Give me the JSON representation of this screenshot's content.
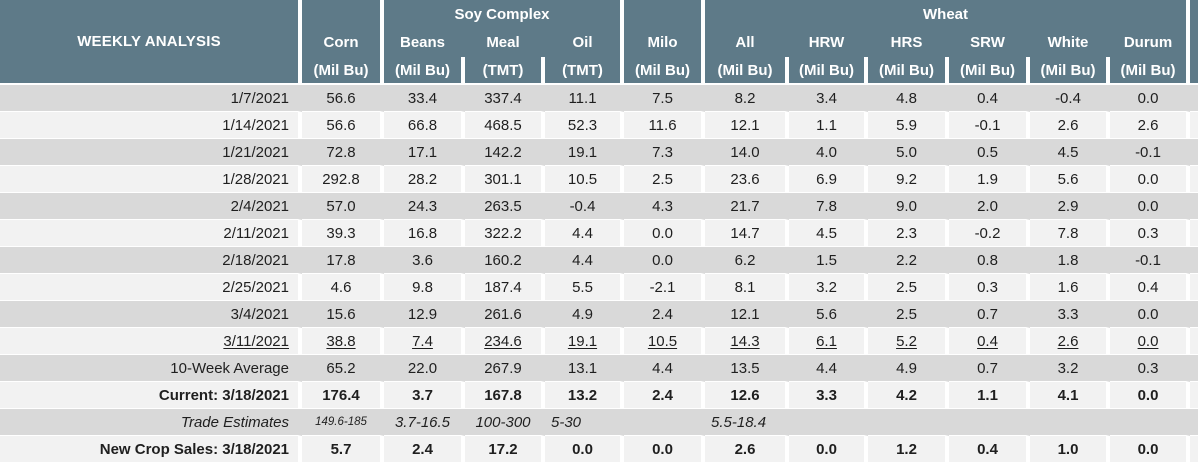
{
  "chart_data": {
    "type": "table",
    "title": "WEEKLY ANALYSIS",
    "groups": [
      {
        "label": "Soy Complex"
      },
      {
        "label": "Wheat"
      }
    ],
    "columns": [
      {
        "name": "Corn",
        "unit": "(Mil Bu)"
      },
      {
        "name": "Beans",
        "unit": "(Mil Bu)",
        "group": "Soy Complex"
      },
      {
        "name": "Meal",
        "unit": "(TMT)",
        "group": "Soy Complex"
      },
      {
        "name": "Oil",
        "unit": "(TMT)",
        "group": "Soy Complex"
      },
      {
        "name": "Milo",
        "unit": "(Mil Bu)"
      },
      {
        "name": "All",
        "unit": "(Mil Bu)",
        "group": "Wheat"
      },
      {
        "name": "HRW",
        "unit": "(Mil Bu)",
        "group": "Wheat"
      },
      {
        "name": "HRS",
        "unit": "(Mil Bu)",
        "group": "Wheat"
      },
      {
        "name": "SRW",
        "unit": "(Mil Bu)",
        "group": "Wheat"
      },
      {
        "name": "White",
        "unit": "(Mil Bu)",
        "group": "Wheat"
      },
      {
        "name": "Durum",
        "unit": "(Mil Bu)",
        "group": "Wheat"
      }
    ],
    "rows": [
      {
        "label": "1/7/2021",
        "values": [
          "56.6",
          "33.4",
          "337.4",
          "11.1",
          "7.5",
          "8.2",
          "3.4",
          "4.8",
          "0.4",
          "-0.4",
          "0.0"
        ]
      },
      {
        "label": "1/14/2021",
        "values": [
          "56.6",
          "66.8",
          "468.5",
          "52.3",
          "11.6",
          "12.1",
          "1.1",
          "5.9",
          "-0.1",
          "2.6",
          "2.6"
        ]
      },
      {
        "label": "1/21/2021",
        "values": [
          "72.8",
          "17.1",
          "142.2",
          "19.1",
          "7.3",
          "14.0",
          "4.0",
          "5.0",
          "0.5",
          "4.5",
          "-0.1"
        ]
      },
      {
        "label": "1/28/2021",
        "values": [
          "292.8",
          "28.2",
          "301.1",
          "10.5",
          "2.5",
          "23.6",
          "6.9",
          "9.2",
          "1.9",
          "5.6",
          "0.0"
        ]
      },
      {
        "label": "2/4/2021",
        "values": [
          "57.0",
          "24.3",
          "263.5",
          "-0.4",
          "4.3",
          "21.7",
          "7.8",
          "9.0",
          "2.0",
          "2.9",
          "0.0"
        ]
      },
      {
        "label": "2/11/2021",
        "values": [
          "39.3",
          "16.8",
          "322.2",
          "4.4",
          "0.0",
          "14.7",
          "4.5",
          "2.3",
          "-0.2",
          "7.8",
          "0.3"
        ]
      },
      {
        "label": "2/18/2021",
        "values": [
          "17.8",
          "3.6",
          "160.2",
          "4.4",
          "0.0",
          "6.2",
          "1.5",
          "2.2",
          "0.8",
          "1.8",
          "-0.1"
        ]
      },
      {
        "label": "2/25/2021",
        "values": [
          "4.6",
          "9.8",
          "187.4",
          "5.5",
          "-2.1",
          "8.1",
          "3.2",
          "2.5",
          "0.3",
          "1.6",
          "0.4"
        ]
      },
      {
        "label": "3/4/2021",
        "values": [
          "15.6",
          "12.9",
          "261.6",
          "4.9",
          "2.4",
          "12.1",
          "5.6",
          "2.5",
          "0.7",
          "3.3",
          "0.0"
        ]
      },
      {
        "label": "3/11/2021",
        "values": [
          "38.8",
          "7.4",
          "234.6",
          "19.1",
          "10.5",
          "14.3",
          "6.1",
          "5.2",
          "0.4",
          "2.6",
          "0.0"
        ],
        "emphasis": "underline"
      },
      {
        "label": "10-Week Average",
        "values": [
          "65.2",
          "22.0",
          "267.9",
          "13.1",
          "4.4",
          "13.5",
          "4.4",
          "4.9",
          "0.7",
          "3.2",
          "0.3"
        ]
      },
      {
        "label": "Current: 3/18/2021",
        "values": [
          "176.4",
          "3.7",
          "167.8",
          "13.2",
          "2.4",
          "12.6",
          "3.3",
          "4.2",
          "1.1",
          "4.1",
          "0.0"
        ],
        "emphasis": "bold"
      },
      {
        "label": "Trade Estimates",
        "values": [
          "149.6-185",
          "3.7-16.5",
          "100-300",
          "5-30",
          "",
          "5.5-18.4",
          "",
          "",
          "",
          "",
          ""
        ],
        "emphasis": "italic"
      },
      {
        "label": "New Crop Sales: 3/18/2021",
        "values": [
          "5.7",
          "2.4",
          "17.2",
          "0.0",
          "0.0",
          "2.6",
          "0.0",
          "1.2",
          "0.4",
          "1.0",
          "0.0"
        ],
        "emphasis": "bold"
      }
    ],
    "colors": {
      "header_bg": "#5e7a88",
      "header_text": "#ffffff",
      "row_stripe_dark": "#d9d9d9",
      "row_stripe_light": "#f2f2f2",
      "text": "#1f1f1f"
    }
  }
}
